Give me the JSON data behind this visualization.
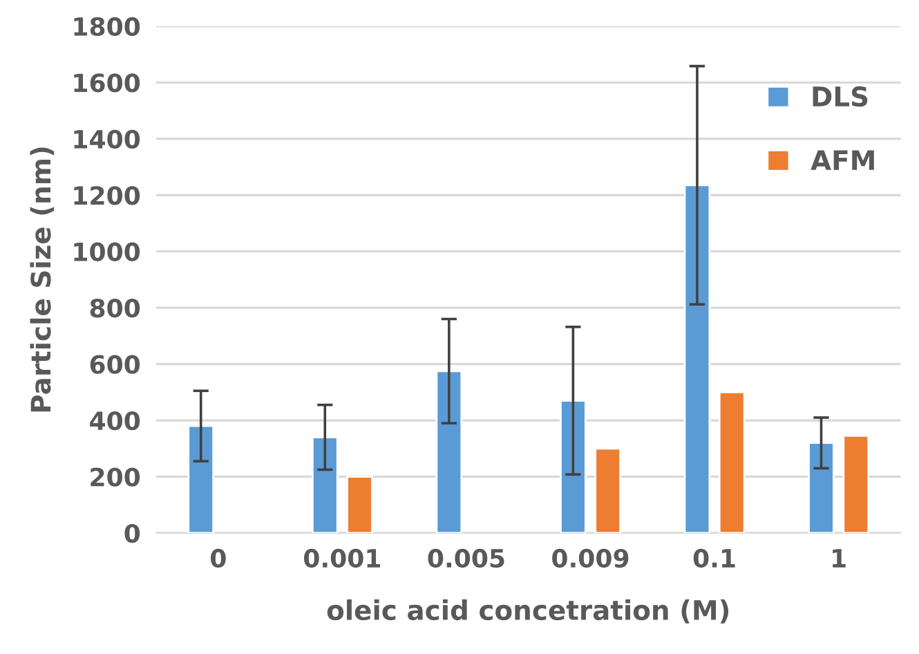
{
  "chart_data": {
    "type": "bar",
    "xlabel": "oleic acid concetration (M)",
    "ylabel": "Particle Size (nm)",
    "categories": [
      "0",
      "0.001",
      "0.005",
      "0.009",
      "0.1",
      "1"
    ],
    "series": [
      {
        "name": "DLS",
        "color": "#5b9bd5",
        "values": [
          380,
          340,
          575,
          470,
          1235,
          320
        ],
        "errors": [
          125,
          115,
          185,
          262,
          423,
          90
        ]
      },
      {
        "name": "AFM",
        "color": "#ed7d31",
        "values": [
          null,
          200,
          null,
          300,
          500,
          345
        ]
      }
    ],
    "ylim": [
      0,
      1800
    ],
    "yticks": [
      0,
      200,
      400,
      600,
      800,
      1000,
      1200,
      1400,
      1600,
      1800
    ],
    "grid": "y",
    "legend": "top right"
  }
}
